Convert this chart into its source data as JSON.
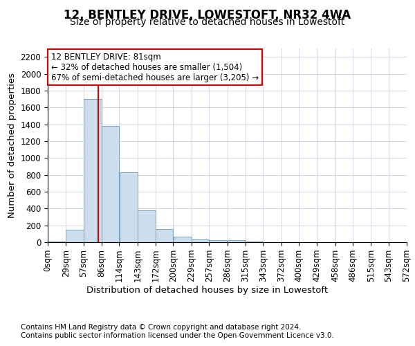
{
  "title": "12, BENTLEY DRIVE, LOWESTOFT, NR32 4WA",
  "subtitle": "Size of property relative to detached houses in Lowestoft",
  "xlabel": "Distribution of detached houses by size in Lowestoft",
  "ylabel": "Number of detached properties",
  "footer_line1": "Contains HM Land Registry data © Crown copyright and database right 2024.",
  "footer_line2": "Contains public sector information licensed under the Open Government Licence v3.0.",
  "bar_color": "#ccdded",
  "bar_edge_color": "#6699bb",
  "grid_color": "#d0d8e8",
  "vline_color": "#cc0000",
  "annotation_line1": "12 BENTLEY DRIVE: 81sqm",
  "annotation_line2": "← 32% of detached houses are smaller (1,504)",
  "annotation_line3": "67% of semi-detached houses are larger (3,205) →",
  "property_size": 81,
  "bins": [
    0,
    29,
    57,
    86,
    114,
    143,
    172,
    200,
    229,
    257,
    286,
    315,
    343,
    372,
    400,
    429,
    458,
    486,
    515,
    543,
    572
  ],
  "bar_heights": [
    10,
    150,
    1700,
    1380,
    830,
    380,
    160,
    65,
    30,
    25,
    25,
    5,
    0,
    0,
    0,
    0,
    0,
    0,
    0,
    0
  ],
  "ylim": [
    0,
    2300
  ],
  "yticks": [
    0,
    200,
    400,
    600,
    800,
    1000,
    1200,
    1400,
    1600,
    1800,
    2000,
    2200
  ],
  "title_fontsize": 12,
  "subtitle_fontsize": 10,
  "axis_label_fontsize": 9.5,
  "tick_fontsize": 8.5,
  "footer_fontsize": 7.5
}
